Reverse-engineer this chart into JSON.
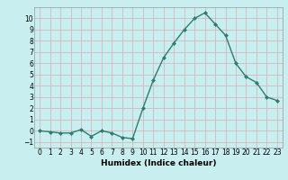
{
  "x": [
    0,
    1,
    2,
    3,
    4,
    5,
    6,
    7,
    8,
    9,
    10,
    11,
    12,
    13,
    14,
    15,
    16,
    17,
    18,
    19,
    20,
    21,
    22,
    23
  ],
  "y": [
    0,
    -0.1,
    -0.2,
    -0.2,
    0.1,
    -0.5,
    0.0,
    -0.2,
    -0.6,
    -0.7,
    2.0,
    4.5,
    6.5,
    7.8,
    9.0,
    10.0,
    10.5,
    9.5,
    8.5,
    6.0,
    4.8,
    4.3,
    3.0,
    2.7
  ],
  "line_color": "#2e7d6e",
  "marker": "D",
  "marker_size": 2,
  "bg_color": "#c8eef0",
  "grid_color": "#d4b8b8",
  "xlabel": "Humidex (Indice chaleur)",
  "xlim": [
    -0.5,
    23.5
  ],
  "ylim": [
    -1.5,
    11
  ],
  "yticks": [
    -1,
    0,
    1,
    2,
    3,
    4,
    5,
    6,
    7,
    8,
    9,
    10
  ],
  "xticks": [
    0,
    1,
    2,
    3,
    4,
    5,
    6,
    7,
    8,
    9,
    10,
    11,
    12,
    13,
    14,
    15,
    16,
    17,
    18,
    19,
    20,
    21,
    22,
    23
  ],
  "xlabel_fontsize": 6.5,
  "tick_fontsize": 5.5
}
